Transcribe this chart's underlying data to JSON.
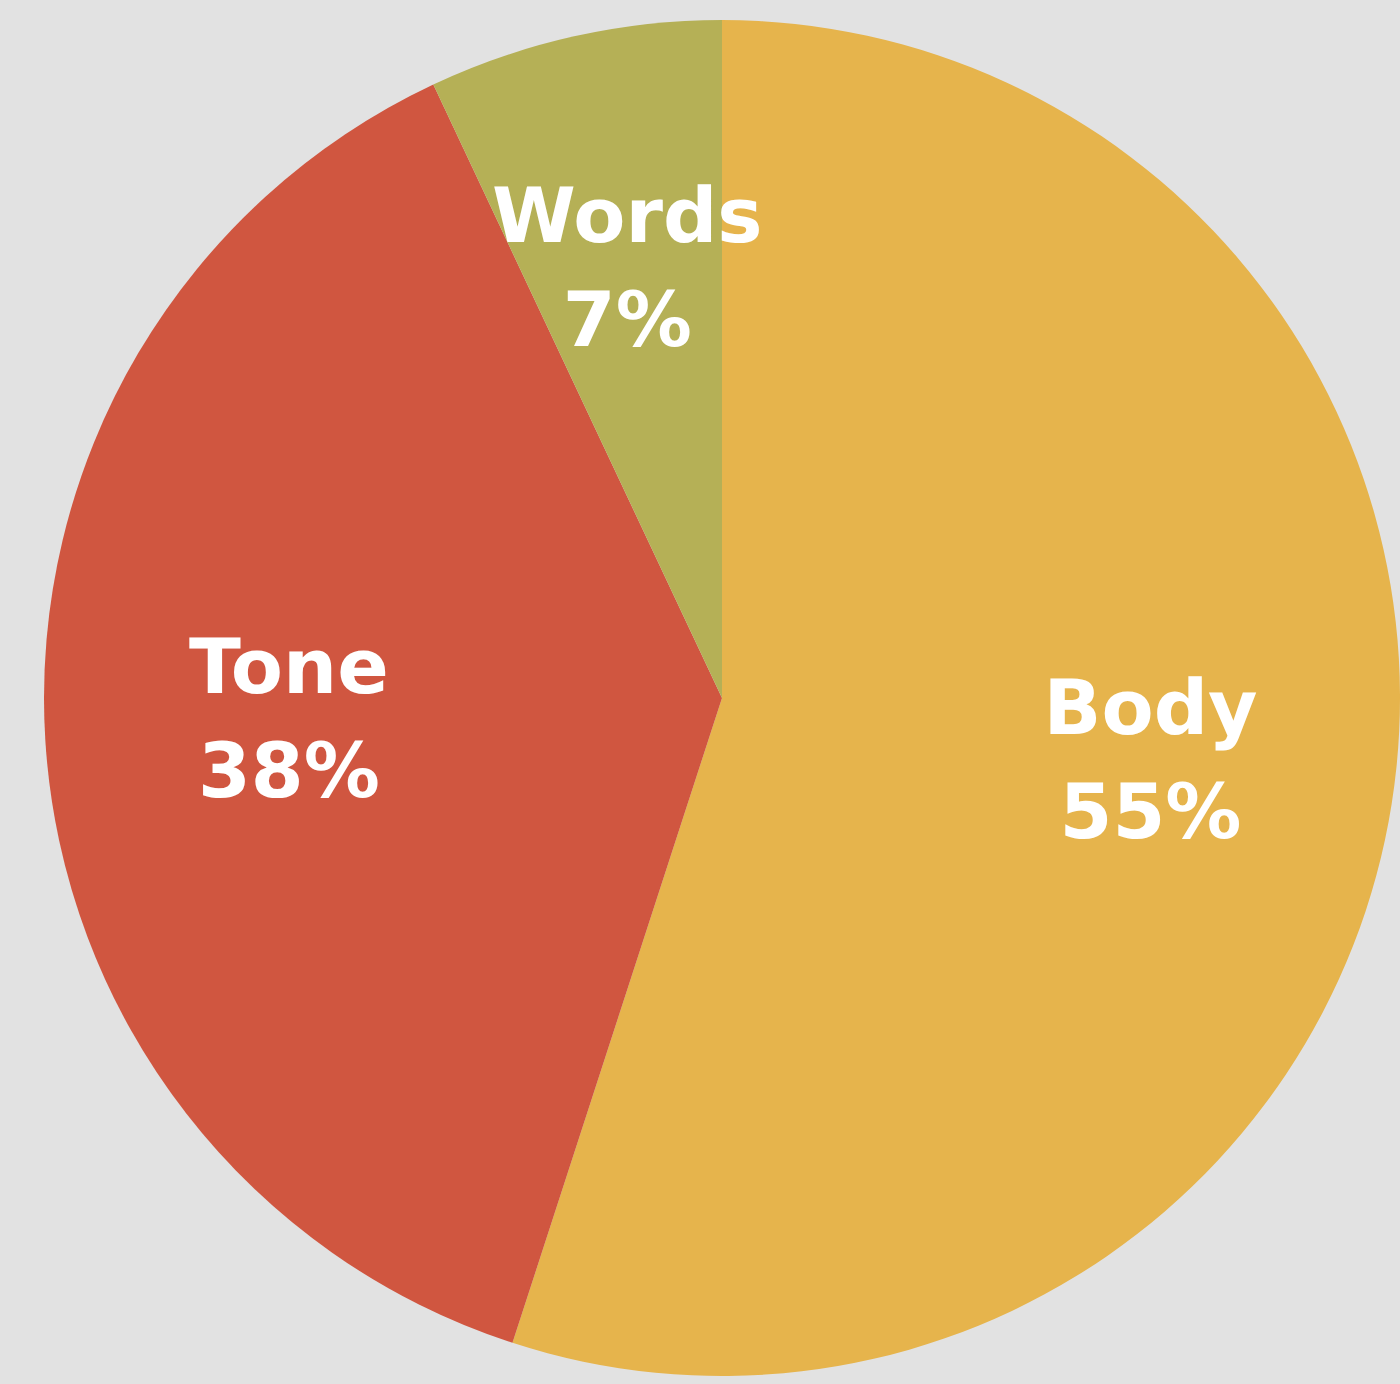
{
  "chart_data": {
    "type": "pie",
    "categories": [
      "Body",
      "Tone",
      "Words"
    ],
    "values": [
      55,
      38,
      7
    ],
    "value_labels": [
      "55%",
      "38%",
      "7%"
    ],
    "colors": [
      "#e6b44c",
      "#d05640",
      "#b5b056"
    ],
    "legend": false
  }
}
